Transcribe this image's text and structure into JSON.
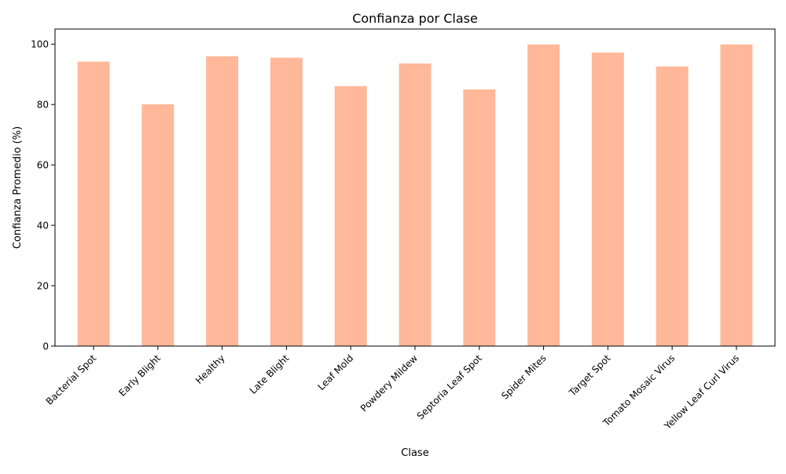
{
  "chart_data": {
    "type": "bar",
    "title": "Confianza por Clase",
    "xlabel": "Clase",
    "ylabel": "Confianza Promedio (%)",
    "categories": [
      "Bacterial Spot",
      "Early Blight",
      "Healthy",
      "Late Blight",
      "Leaf Mold",
      "Powdery Mildew",
      "Septoria Leaf Spot",
      "Spider Mites",
      "Target Spot",
      "Tomato Mosaic Virus",
      "Yellow Leaf Curl Virus"
    ],
    "values": [
      94.2,
      80.1,
      96.0,
      95.5,
      86.1,
      93.6,
      85.0,
      99.9,
      97.2,
      92.6,
      99.9
    ],
    "ylim": [
      0,
      105
    ],
    "yticks": [
      0,
      20,
      40,
      60,
      80,
      100
    ],
    "bar_color": "#ffb899",
    "grid": false,
    "legend": "none"
  }
}
